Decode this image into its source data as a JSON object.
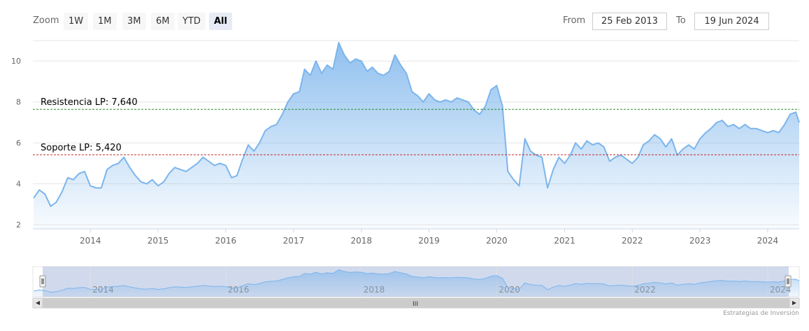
{
  "rangeSelector": {
    "zoom_label": "Zoom",
    "buttons": [
      "1W",
      "1M",
      "3M",
      "6M",
      "YTD",
      "All"
    ],
    "active": "All",
    "from_label": "From",
    "from_value": "25 Feb 2013",
    "to_label": "To",
    "to_value": "19 Jun 2024"
  },
  "credit": "Estrategias de Inversión",
  "colors": {
    "line": "#7cb5ec",
    "resistance": "#2e8b2e",
    "support": "#c0282d",
    "grid": "#e6e6e6"
  },
  "chart_data": {
    "type": "area",
    "title": "",
    "xlabel": "",
    "ylabel": "",
    "ylim": [
      1.8,
      11
    ],
    "y_ticks": [
      2,
      4,
      6,
      8,
      10
    ],
    "x_ticks": [
      "2014",
      "2015",
      "2016",
      "2017",
      "2018",
      "2019",
      "2020",
      "2021",
      "2022",
      "2023",
      "2024"
    ],
    "x_range": [
      "2013-02-25",
      "2024-06-19"
    ],
    "grid": true,
    "series": [
      {
        "points": [
          [
            "2013-03-01",
            3.3
          ],
          [
            "2013-04-01",
            3.7
          ],
          [
            "2013-05-01",
            3.5
          ],
          [
            "2013-06-01",
            2.9
          ],
          [
            "2013-07-01",
            3.1
          ],
          [
            "2013-08-01",
            3.6
          ],
          [
            "2013-09-01",
            4.3
          ],
          [
            "2013-10-01",
            4.2
          ],
          [
            "2013-11-01",
            4.5
          ],
          [
            "2013-12-01",
            4.6
          ],
          [
            "2014-01-01",
            3.9
          ],
          [
            "2014-02-01",
            3.8
          ],
          [
            "2014-03-01",
            3.8
          ],
          [
            "2014-04-01",
            4.7
          ],
          [
            "2014-05-01",
            4.9
          ],
          [
            "2014-06-01",
            5.0
          ],
          [
            "2014-07-01",
            5.3
          ],
          [
            "2014-08-01",
            4.8
          ],
          [
            "2014-09-01",
            4.4
          ],
          [
            "2014-10-01",
            4.1
          ],
          [
            "2014-11-01",
            4.0
          ],
          [
            "2014-12-01",
            4.2
          ],
          [
            "2015-01-01",
            3.9
          ],
          [
            "2015-02-01",
            4.1
          ],
          [
            "2015-03-01",
            4.5
          ],
          [
            "2015-04-01",
            4.8
          ],
          [
            "2015-05-01",
            4.7
          ],
          [
            "2015-06-01",
            4.6
          ],
          [
            "2015-07-01",
            4.8
          ],
          [
            "2015-08-01",
            5.0
          ],
          [
            "2015-09-01",
            5.3
          ],
          [
            "2015-10-01",
            5.1
          ],
          [
            "2015-11-01",
            4.9
          ],
          [
            "2015-12-01",
            5.0
          ],
          [
            "2016-01-01",
            4.9
          ],
          [
            "2016-02-01",
            4.3
          ],
          [
            "2016-03-01",
            4.4
          ],
          [
            "2016-04-01",
            5.2
          ],
          [
            "2016-05-01",
            5.9
          ],
          [
            "2016-06-01",
            5.6
          ],
          [
            "2016-07-01",
            6.0
          ],
          [
            "2016-08-01",
            6.6
          ],
          [
            "2016-09-01",
            6.8
          ],
          [
            "2016-10-01",
            6.9
          ],
          [
            "2016-11-01",
            7.4
          ],
          [
            "2016-12-01",
            8.0
          ],
          [
            "2017-01-01",
            8.4
          ],
          [
            "2017-02-01",
            8.5
          ],
          [
            "2017-03-01",
            9.6
          ],
          [
            "2017-04-01",
            9.3
          ],
          [
            "2017-05-01",
            10.0
          ],
          [
            "2017-06-01",
            9.4
          ],
          [
            "2017-07-01",
            9.8
          ],
          [
            "2017-08-01",
            9.6
          ],
          [
            "2017-09-01",
            10.9
          ],
          [
            "2017-10-01",
            10.3
          ],
          [
            "2017-11-01",
            9.9
          ],
          [
            "2017-12-01",
            10.1
          ],
          [
            "2018-01-01",
            10.0
          ],
          [
            "2018-02-01",
            9.5
          ],
          [
            "2018-03-01",
            9.7
          ],
          [
            "2018-04-01",
            9.4
          ],
          [
            "2018-05-01",
            9.3
          ],
          [
            "2018-06-01",
            9.5
          ],
          [
            "2018-07-01",
            10.3
          ],
          [
            "2018-08-01",
            9.8
          ],
          [
            "2018-09-01",
            9.4
          ],
          [
            "2018-10-01",
            8.5
          ],
          [
            "2018-11-01",
            8.3
          ],
          [
            "2018-12-01",
            8.0
          ],
          [
            "2019-01-01",
            8.4
          ],
          [
            "2019-02-01",
            8.1
          ],
          [
            "2019-03-01",
            8.0
          ],
          [
            "2019-04-01",
            8.1
          ],
          [
            "2019-05-01",
            8.0
          ],
          [
            "2019-06-01",
            8.2
          ],
          [
            "2019-07-01",
            8.1
          ],
          [
            "2019-08-01",
            8.0
          ],
          [
            "2019-09-01",
            7.6
          ],
          [
            "2019-10-01",
            7.4
          ],
          [
            "2019-11-01",
            7.8
          ],
          [
            "2019-12-01",
            8.6
          ],
          [
            "2020-01-01",
            8.8
          ],
          [
            "2020-02-01",
            7.8
          ],
          [
            "2020-03-01",
            4.6
          ],
          [
            "2020-04-01",
            4.2
          ],
          [
            "2020-05-01",
            3.9
          ],
          [
            "2020-06-01",
            6.2
          ],
          [
            "2020-07-01",
            5.6
          ],
          [
            "2020-08-01",
            5.4
          ],
          [
            "2020-09-01",
            5.3
          ],
          [
            "2020-10-01",
            3.8
          ],
          [
            "2020-11-01",
            4.7
          ],
          [
            "2020-12-01",
            5.3
          ],
          [
            "2021-01-01",
            5.0
          ],
          [
            "2021-02-01",
            5.4
          ],
          [
            "2021-03-01",
            6.0
          ],
          [
            "2021-04-01",
            5.7
          ],
          [
            "2021-05-01",
            6.1
          ],
          [
            "2021-06-01",
            5.9
          ],
          [
            "2021-07-01",
            6.0
          ],
          [
            "2021-08-01",
            5.8
          ],
          [
            "2021-09-01",
            5.1
          ],
          [
            "2021-10-01",
            5.3
          ],
          [
            "2021-11-01",
            5.4
          ],
          [
            "2021-12-01",
            5.2
          ],
          [
            "2022-01-01",
            5.0
          ],
          [
            "2022-02-01",
            5.3
          ],
          [
            "2022-03-01",
            5.9
          ],
          [
            "2022-04-01",
            6.1
          ],
          [
            "2022-05-01",
            6.4
          ],
          [
            "2022-06-01",
            6.2
          ],
          [
            "2022-07-01",
            5.8
          ],
          [
            "2022-08-01",
            6.2
          ],
          [
            "2022-09-01",
            5.4
          ],
          [
            "2022-10-01",
            5.7
          ],
          [
            "2022-11-01",
            5.9
          ],
          [
            "2022-12-01",
            5.7
          ],
          [
            "2023-01-01",
            6.2
          ],
          [
            "2023-02-01",
            6.5
          ],
          [
            "2023-03-01",
            6.7
          ],
          [
            "2023-04-01",
            7.0
          ],
          [
            "2023-05-01",
            7.1
          ],
          [
            "2023-06-01",
            6.8
          ],
          [
            "2023-07-01",
            6.9
          ],
          [
            "2023-08-01",
            6.7
          ],
          [
            "2023-09-01",
            6.9
          ],
          [
            "2023-10-01",
            6.7
          ],
          [
            "2023-11-01",
            6.7
          ],
          [
            "2023-12-01",
            6.6
          ],
          [
            "2024-01-01",
            6.5
          ],
          [
            "2024-02-01",
            6.6
          ],
          [
            "2024-03-01",
            6.5
          ],
          [
            "2024-04-01",
            6.9
          ],
          [
            "2024-05-01",
            7.4
          ],
          [
            "2024-06-01",
            7.5
          ],
          [
            "2024-06-19",
            7.0
          ]
        ]
      }
    ],
    "reference_lines": [
      {
        "label": "Resistencia LP: 7,640",
        "value": 7.64,
        "color": "#2e8b2e"
      },
      {
        "label": "Soporte LP: 5,420",
        "value": 5.42,
        "color": "#c0282d"
      }
    ],
    "navigator": {
      "x_ticks": [
        "2014",
        "2016",
        "2018",
        "2020",
        "2022",
        "2024"
      ],
      "scrollbar_grip": "III"
    }
  }
}
